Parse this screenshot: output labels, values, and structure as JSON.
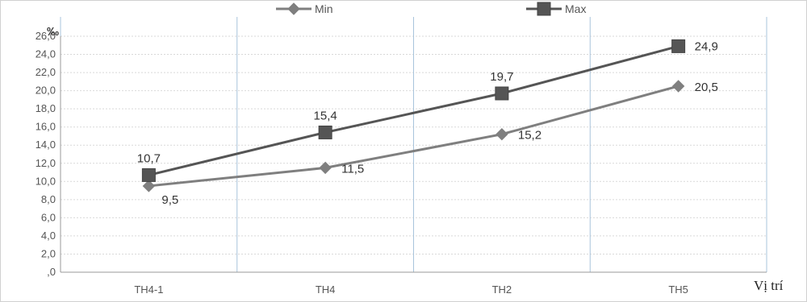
{
  "chart_data": {
    "type": "line",
    "categories": [
      "TH4-1",
      "TH4",
      "TH2",
      "TH5"
    ],
    "series": [
      {
        "name": "Min",
        "values": [
          9.5,
          11.5,
          15.2,
          20.5
        ],
        "labels": [
          "9,5",
          "11,5",
          "15,2",
          "20,5"
        ],
        "color": "#7f7f7f",
        "marker": "diamond"
      },
      {
        "name": "Max",
        "values": [
          10.7,
          15.4,
          19.7,
          24.9
        ],
        "labels": [
          "10,7",
          "15,4",
          "19,7",
          "24,9"
        ],
        "color": "#555555",
        "marker": "square"
      }
    ],
    "ylim": [
      0,
      26
    ],
    "yticks": [
      0,
      2,
      4,
      6,
      8,
      10,
      12,
      14,
      16,
      18,
      20,
      22,
      24,
      26
    ],
    "ytick_labels": [
      ",0",
      "2,0",
      "4,0",
      "6,0",
      "8,0",
      "10,0",
      "12,0",
      "14,0",
      "16,0",
      "18,0",
      "20,0",
      "22,0",
      "24,0",
      "26,0"
    ],
    "ylabel": "‰",
    "xlabel": "Vị trí",
    "legend_position": "top-center",
    "grid": true
  }
}
